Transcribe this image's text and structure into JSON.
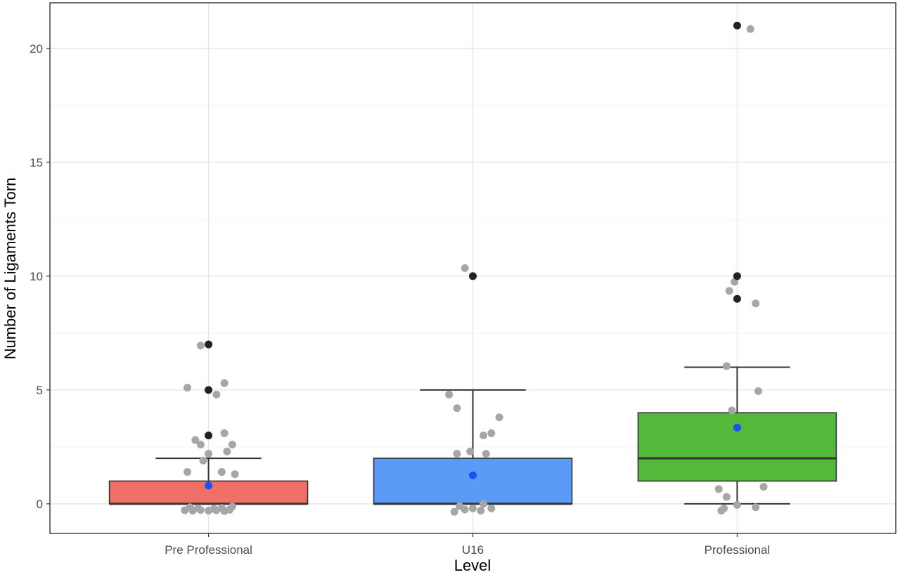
{
  "chart_data": {
    "type": "box",
    "xlabel": "Level",
    "ylabel": "Number of Ligaments Torn",
    "ylim": [
      -1.3,
      22.0
    ],
    "yticks": [
      0,
      5,
      10,
      15,
      20
    ],
    "grid": true,
    "legend": "none",
    "colors": {
      "Pre Professional": "#f07068",
      "U16": "#5b9bf8",
      "Professional": "#52b93a",
      "mean_point": "#1e50f0",
      "jitter_point": "#a6a6a6",
      "outlier_point": "#222222"
    },
    "categories": [
      "Pre Professional",
      "U16",
      "Professional"
    ],
    "boxes": [
      {
        "category": "Pre Professional",
        "q1": 0,
        "median": 0,
        "q3": 1,
        "whisker_low": 0,
        "whisker_high": 2,
        "mean": 0.8,
        "outliers": [
          3,
          5,
          7
        ],
        "jitter": [
          [
            -0.09,
            -0.28
          ],
          [
            -0.06,
            -0.3
          ],
          [
            -0.03,
            -0.27
          ],
          [
            0.0,
            -0.3
          ],
          [
            0.03,
            -0.28
          ],
          [
            0.06,
            -0.32
          ],
          [
            0.08,
            -0.26
          ],
          [
            -0.07,
            -0.15
          ],
          [
            0.05,
            -0.18
          ],
          [
            0.02,
            -0.22
          ],
          [
            -0.04,
            -0.2
          ],
          [
            0.09,
            -0.12
          ],
          [
            -0.08,
            1.4
          ],
          [
            0.05,
            1.4
          ],
          [
            0.1,
            1.3
          ],
          [
            -0.02,
            1.9
          ],
          [
            0.0,
            2.2
          ],
          [
            0.07,
            2.3
          ],
          [
            0.09,
            2.6
          ],
          [
            -0.05,
            2.8
          ],
          [
            -0.03,
            2.6
          ],
          [
            0.06,
            3.1
          ],
          [
            -0.08,
            5.1
          ],
          [
            0.03,
            4.8
          ],
          [
            0.06,
            5.3
          ],
          [
            -0.03,
            6.95
          ]
        ]
      },
      {
        "category": "U16",
        "q1": 0,
        "median": 0,
        "q3": 2,
        "whisker_low": 0,
        "whisker_high": 5,
        "mean": 1.25,
        "outliers": [
          10
        ],
        "jitter": [
          [
            -0.07,
            -0.35
          ],
          [
            -0.03,
            -0.25
          ],
          [
            0.0,
            -0.2
          ],
          [
            0.03,
            -0.3
          ],
          [
            0.07,
            -0.2
          ],
          [
            -0.05,
            -0.1
          ],
          [
            0.04,
            0.0
          ],
          [
            -0.06,
            2.2
          ],
          [
            -0.01,
            2.3
          ],
          [
            0.05,
            2.2
          ],
          [
            0.04,
            3.0
          ],
          [
            0.07,
            3.1
          ],
          [
            0.1,
            3.8
          ],
          [
            -0.06,
            4.2
          ],
          [
            -0.09,
            4.8
          ],
          [
            -0.03,
            10.35
          ]
        ]
      },
      {
        "category": "Professional",
        "q1": 1,
        "median": 2,
        "q3": 4,
        "whisker_low": 0,
        "whisker_high": 6,
        "mean": 3.35,
        "outliers": [
          9,
          10,
          21
        ],
        "jitter": [
          [
            -0.06,
            -0.3
          ],
          [
            -0.05,
            -0.2
          ],
          [
            0.0,
            -0.05
          ],
          [
            0.07,
            -0.15
          ],
          [
            -0.04,
            0.3
          ],
          [
            -0.07,
            0.65
          ],
          [
            0.1,
            0.75
          ],
          [
            -0.02,
            4.1
          ],
          [
            0.08,
            4.95
          ],
          [
            -0.04,
            6.05
          ],
          [
            -0.03,
            9.35
          ],
          [
            -0.01,
            9.75
          ],
          [
            0.07,
            8.8
          ],
          [
            0.05,
            20.85
          ]
        ]
      }
    ]
  }
}
